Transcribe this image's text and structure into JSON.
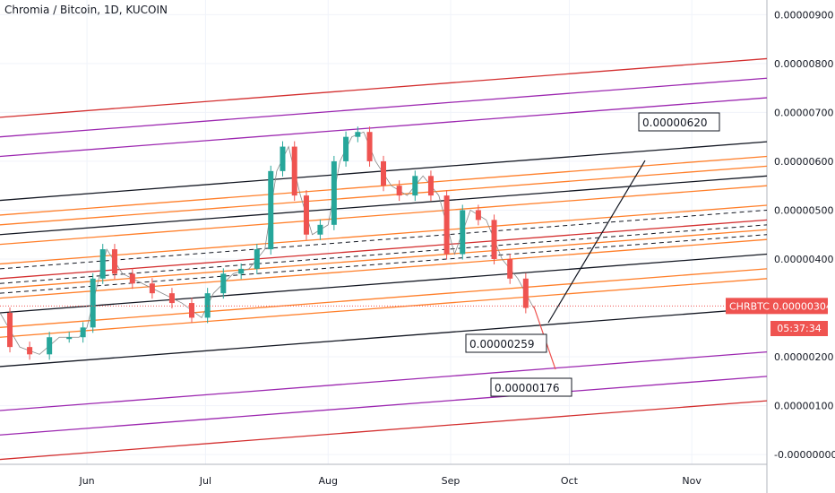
{
  "header": {
    "title": "Chromia / Bitcoin, 1D, KUCOIN"
  },
  "price_badge": {
    "symbol": "CHRBTC",
    "price": "0.00000304",
    "countdown": "05:37:34"
  },
  "colors": {
    "up": "#26a69a",
    "down": "#ef5350",
    "red_line": "#d32f2f",
    "purple_line": "#9c27b0",
    "orange_line": "#ff7f2a",
    "black_line": "#131722",
    "axis_text": "#131722"
  },
  "chart_data": {
    "type": "candlestick",
    "title": "Chromia / Bitcoin, 1D, KUCOIN",
    "y_axis": {
      "ticks": [
        "0.00000900",
        "0.00000800",
        "0.00000700",
        "0.00000600",
        "0.00000500",
        "0.00000400",
        "0.00000200",
        "0.00000100",
        "-0.00000000"
      ],
      "range": [
        -2e-07,
        9.3e-06
      ]
    },
    "x_axis": {
      "ticks": [
        "Jun",
        "Jul",
        "Aug",
        "Sep",
        "Oct",
        "Nov"
      ],
      "range": [
        "2020-05-10",
        "2020-11-20"
      ]
    },
    "last_price": 3.04e-06,
    "annotations": [
      {
        "label": "0.00000620",
        "target": 6.2e-06
      },
      {
        "label": "0.00000259",
        "target": 2.59e-06
      },
      {
        "label": "0.00000176",
        "target": 1.76e-06
      }
    ],
    "series": [
      {
        "x": [
          "2020-05-10",
          "2020-05-15",
          "2020-05-20",
          "2020-05-25",
          "2020-05-30",
          "2020-06-01",
          "2020-06-04",
          "2020-06-06",
          "2020-06-10",
          "2020-06-15",
          "2020-06-20",
          "2020-06-25",
          "2020-06-30",
          "2020-07-03",
          "2020-07-08",
          "2020-07-12",
          "2020-07-16",
          "2020-07-19",
          "2020-07-22",
          "2020-07-25",
          "2020-07-28",
          "2020-08-01",
          "2020-08-04",
          "2020-08-07",
          "2020-08-10",
          "2020-08-13",
          "2020-08-17",
          "2020-08-21",
          "2020-08-25",
          "2020-08-29",
          "2020-09-02",
          "2020-09-06",
          "2020-09-10",
          "2020-09-14",
          "2020-09-18",
          "2020-09-22"
        ],
        "close": [
          2.9e-06,
          2.2e-06,
          2.05e-06,
          2.4e-06,
          2.4e-06,
          2.6e-06,
          3.6e-06,
          4.2e-06,
          3.7e-06,
          3.5e-06,
          3.3e-06,
          3.1e-06,
          2.8e-06,
          3.3e-06,
          3.7e-06,
          3.8e-06,
          4.2e-06,
          5.8e-06,
          6.3e-06,
          5.3e-06,
          4.5e-06,
          4.7e-06,
          6e-06,
          6.5e-06,
          6.6e-06,
          6e-06,
          5.5e-06,
          5.3e-06,
          5.7e-06,
          5.3e-06,
          4.1e-06,
          5e-06,
          4.8e-06,
          4e-06,
          3.6e-06,
          3e-06
        ]
      }
    ]
  }
}
